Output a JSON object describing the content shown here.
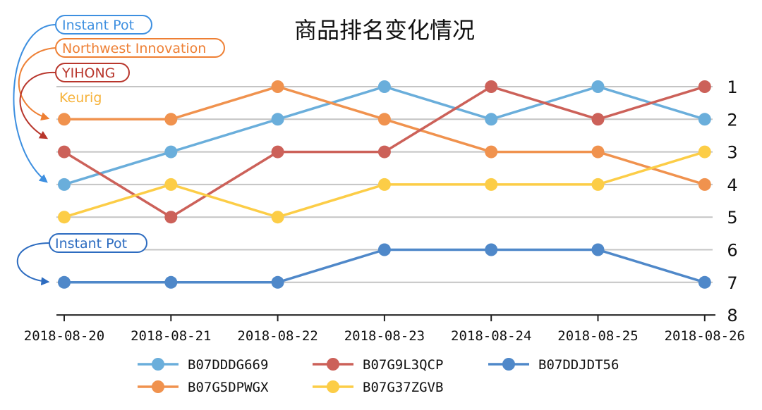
{
  "chart_data": {
    "type": "line",
    "title": "商品排名变化情况",
    "categories": [
      "2018-08-20",
      "2018-08-21",
      "2018-08-22",
      "2018-08-23",
      "2018-08-24",
      "2018-08-25",
      "2018-08-26"
    ],
    "y_ticks": [
      "1",
      "2",
      "3",
      "4",
      "5",
      "6",
      "7",
      "8"
    ],
    "ylim": [
      1,
      8
    ],
    "y_inverted": true,
    "y_axis_position": "right",
    "grid": true,
    "legend_placement": "bottom",
    "series": [
      {
        "name": "B07DDDG669",
        "color": "#6aaedb",
        "values": [
          4,
          3,
          2,
          1,
          2,
          1,
          2
        ]
      },
      {
        "name": "B07G5DPWGX",
        "color": "#f0924e",
        "values": [
          2,
          2,
          1,
          2,
          3,
          3,
          4
        ]
      },
      {
        "name": "B07G9L3QCP",
        "color": "#cc6159",
        "values": [
          3,
          5,
          3,
          3,
          1,
          2,
          1
        ]
      },
      {
        "name": "B07G37ZGVB",
        "color": "#fccd47",
        "values": [
          5,
          4,
          5,
          4,
          4,
          4,
          3
        ]
      },
      {
        "name": "B07DDJDT56",
        "color": "#4f88c9",
        "values": [
          7,
          7,
          7,
          6,
          6,
          6,
          7
        ]
      }
    ],
    "annotations": [
      {
        "text": "Instant Pot",
        "color": "#3d8fe0",
        "boxed": true,
        "points_to": {
          "series": "B07DDDG669",
          "x": "2018-08-20",
          "rank": 4
        }
      },
      {
        "text": "Northwest Innovation",
        "color": "#ee7f33",
        "boxed": true,
        "points_to": {
          "series": "B07G5DPWGX",
          "x": "2018-08-20",
          "rank": 2
        }
      },
      {
        "text": "YIHONG",
        "color": "#b8362c",
        "boxed": true,
        "points_to": {
          "series": "B07G9L3QCP",
          "x": "2018-08-20",
          "rank": 3
        }
      },
      {
        "text": "Keurig",
        "color": "#f6b23a",
        "boxed": false,
        "points_to": null
      },
      {
        "text": "Instant Pot",
        "color": "#2d6cc0",
        "boxed": true,
        "points_to": {
          "series": "B07DDJDT56",
          "x": "2018-08-20",
          "rank": 7
        }
      }
    ]
  }
}
